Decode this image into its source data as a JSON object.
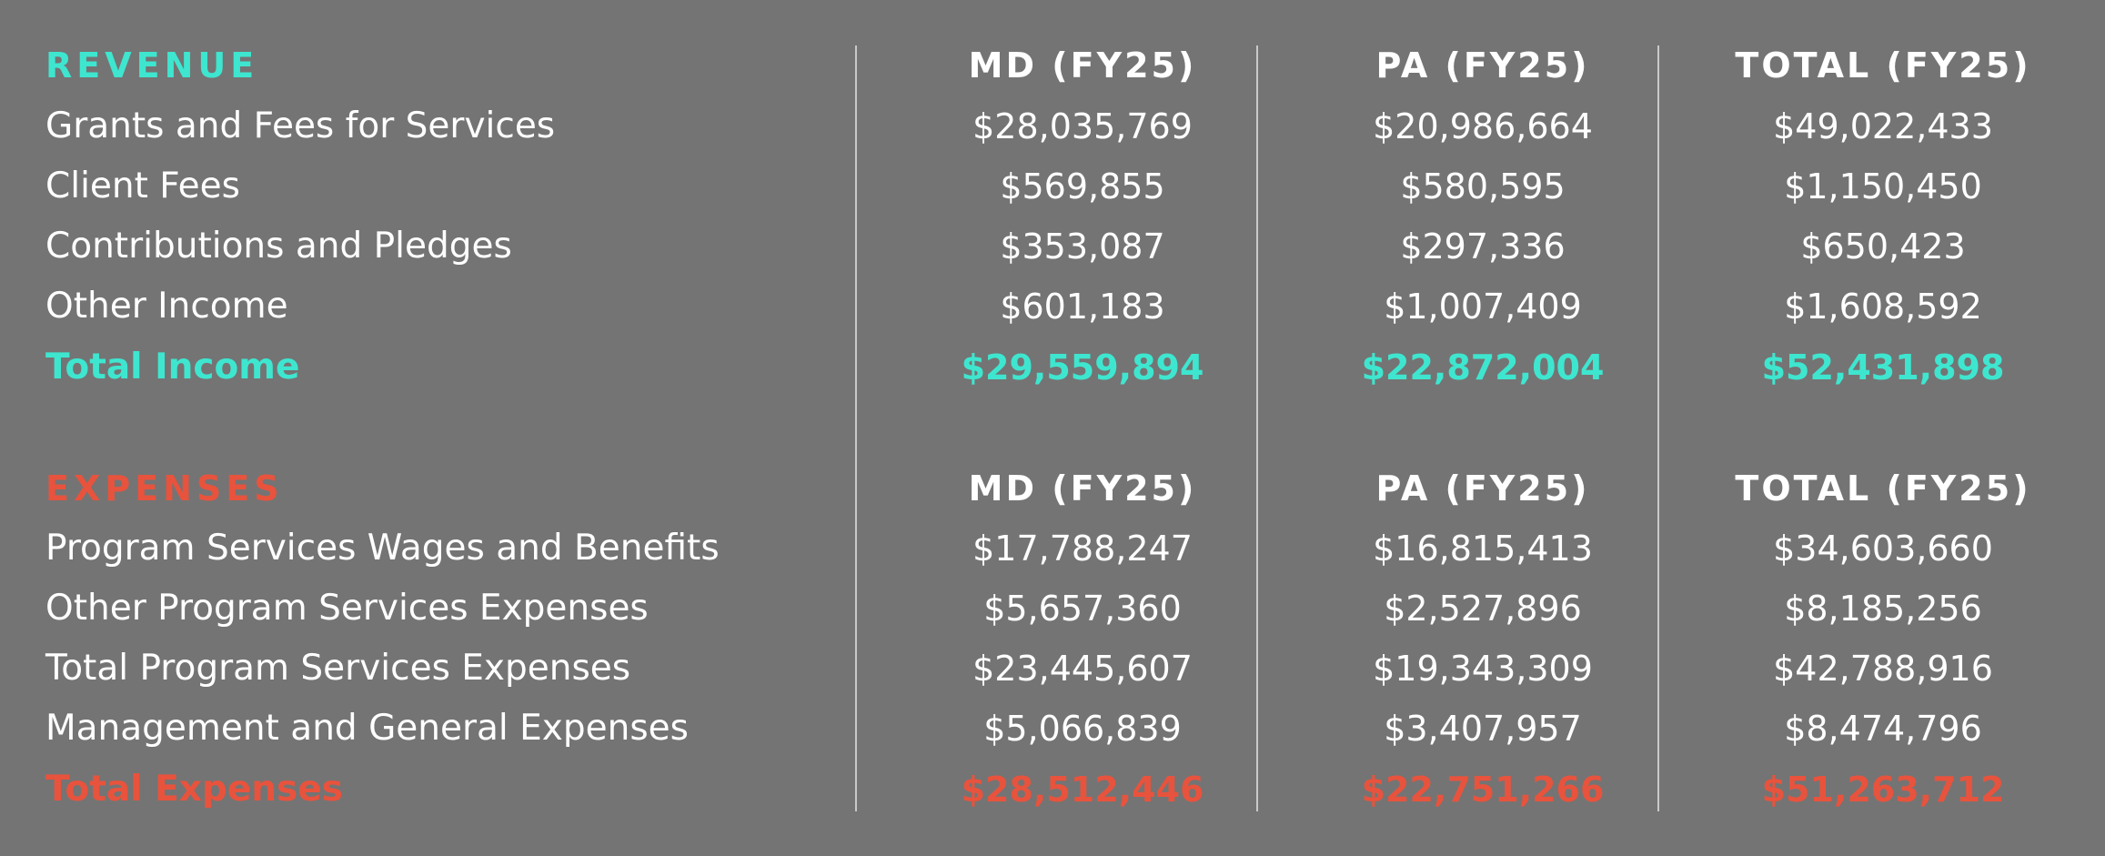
{
  "colors": {
    "background": "#747474",
    "revenue_accent": "#3ee6cf",
    "expense_accent": "#e8533d",
    "divider": "#c9c9c9"
  },
  "revenue": {
    "title": "REVENUE",
    "headers": [
      "MD (FY25)",
      "PA (FY25)",
      "TOTAL (FY25)"
    ],
    "rows": [
      {
        "label": "Grants and Fees for Services",
        "md": "$28,035,769",
        "pa": "$20,986,664",
        "total": "$49,022,433"
      },
      {
        "label": "Client Fees",
        "md": "$569,855",
        "pa": "$580,595",
        "total": "$1,150,450"
      },
      {
        "label": "Contributions and Pledges",
        "md": "$353,087",
        "pa": "$297,336",
        "total": "$650,423"
      },
      {
        "label": "Other Income",
        "md": "$601,183",
        "pa": "$1,007,409",
        "total": "$1,608,592"
      }
    ],
    "total": {
      "label": "Total Income",
      "md": "$29,559,894",
      "pa": "$22,872,004",
      "total": "$52,431,898"
    }
  },
  "expenses": {
    "title": "EXPENSES",
    "headers": [
      "MD (FY25)",
      "PA (FY25)",
      "TOTAL (FY25)"
    ],
    "rows": [
      {
        "label": "Program Services Wages and Benefits",
        "md": "$17,788,247",
        "pa": "$16,815,413",
        "total": "$34,603,660"
      },
      {
        "label": "Other Program Services Expenses",
        "md": "$5,657,360",
        "pa": "$2,527,896",
        "total": "$8,185,256"
      },
      {
        "label": "Total Program Services Expenses",
        "md": "$23,445,607",
        "pa": "$19,343,309",
        "total": "$42,788,916"
      },
      {
        "label": "Management and General Expenses",
        "md": "$5,066,839",
        "pa": "$3,407,957",
        "total": "$8,474,796"
      }
    ],
    "total": {
      "label": "Total Expenses",
      "md": "$28,512,446",
      "pa": "$22,751,266",
      "total": "$51,263,712"
    }
  }
}
